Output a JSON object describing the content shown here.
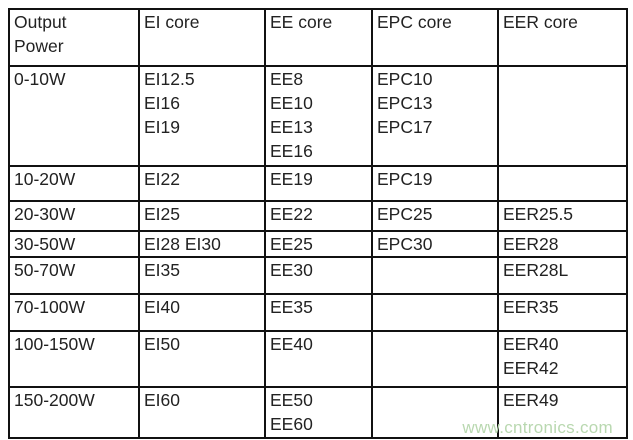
{
  "table": {
    "headers": [
      [
        "Output",
        "Power"
      ],
      [
        "EI core"
      ],
      [
        "EE core"
      ],
      [
        "EPC core"
      ],
      [
        "EER core"
      ]
    ],
    "rows": [
      [
        [
          "0-10W"
        ],
        [
          "EI12.5",
          "EI16",
          "EI19"
        ],
        [
          "EE8",
          "EE10",
          "EE13",
          "EE16"
        ],
        [
          "EPC10",
          "EPC13",
          "EPC17"
        ],
        []
      ],
      [
        [
          "10-20W"
        ],
        [
          "EI22"
        ],
        [
          "EE19"
        ],
        [
          "EPC19"
        ],
        []
      ],
      [
        [
          "20-30W"
        ],
        [
          "EI25"
        ],
        [
          "EE22"
        ],
        [
          "EPC25"
        ],
        [
          "EER25.5"
        ]
      ],
      [
        [
          "30-50W"
        ],
        [
          "EI28 EI30"
        ],
        [
          "EE25"
        ],
        [
          "EPC30"
        ],
        [
          "EER28"
        ]
      ],
      [
        [
          "50-70W"
        ],
        [
          "EI35"
        ],
        [
          "EE30"
        ],
        [],
        [
          "EER28L"
        ]
      ],
      [
        [
          "70-100W"
        ],
        [
          "EI40"
        ],
        [
          "EE35"
        ],
        [],
        [
          "EER35"
        ]
      ],
      [
        [
          "100-150W"
        ],
        [
          "EI50"
        ],
        [
          "EE40"
        ],
        [],
        [
          "EER40",
          "EER42"
        ]
      ],
      [
        [
          "150-200W"
        ],
        [
          "EI60"
        ],
        [
          "EE50",
          "EE60"
        ],
        [],
        [
          "EER49"
        ]
      ]
    ]
  },
  "watermark": "www.cntronics.com"
}
